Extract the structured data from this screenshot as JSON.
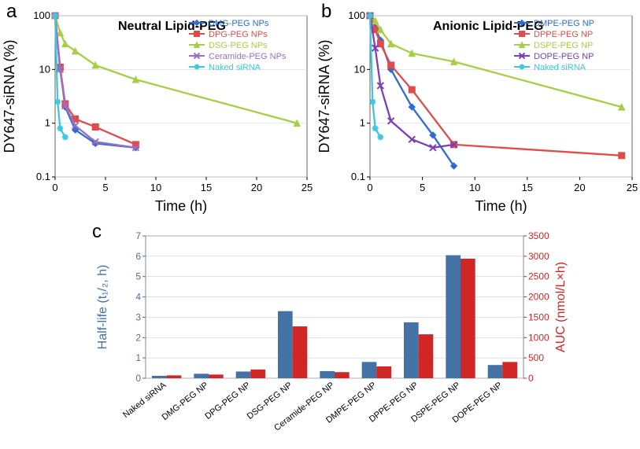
{
  "panel_a": {
    "letter": "a",
    "title": "Neutral Lipid-PEG",
    "xlabel": "Time (h)",
    "ylabel": "DY647-siRNA (%)",
    "xlim": [
      0,
      25
    ],
    "xtick_step": 5,
    "ylim": [
      0.1,
      100
    ],
    "yscale": "log",
    "bg": "#ffffff",
    "grid": "#d9d9d9",
    "series": [
      {
        "name": "DMG-PEG NPs",
        "color": "#2d6cd2",
        "marker": "diamond",
        "x": [
          0,
          0.5,
          1,
          2,
          4,
          8
        ],
        "y": [
          100,
          10,
          2.0,
          0.75,
          0.42,
          0.35
        ]
      },
      {
        "name": "DPG-PEG NPs",
        "color": "#e14b4b",
        "marker": "square",
        "x": [
          0,
          0.5,
          1,
          2,
          4,
          8
        ],
        "y": [
          100,
          11,
          2.3,
          1.2,
          0.85,
          0.4
        ]
      },
      {
        "name": "DSG-PEG NPs",
        "color": "#a6cf45",
        "marker": "triangle",
        "x": [
          0,
          0.5,
          1,
          2,
          4,
          8,
          24
        ],
        "y": [
          100,
          48,
          30,
          22,
          12,
          6.5,
          1.0
        ]
      },
      {
        "name": "Ceramide-PEG NPs",
        "color": "#9b6fbf",
        "marker": "x",
        "x": [
          0,
          0.5,
          1,
          2,
          4,
          8
        ],
        "y": [
          100,
          10,
          2.1,
          0.9,
          0.45,
          0.35
        ]
      },
      {
        "name": "Naked siRNA",
        "color": "#3dc7e0",
        "marker": "star",
        "x": [
          0,
          0.25,
          0.5,
          1
        ],
        "y": [
          100,
          2.5,
          0.8,
          0.55
        ]
      }
    ]
  },
  "panel_b": {
    "letter": "b",
    "title": "Anionic Lipid-PEG",
    "xlabel": "Time (h)",
    "ylabel": "DY647-siRNA (%)",
    "xlim": [
      0,
      25
    ],
    "xtick_step": 5,
    "ylim": [
      0.1,
      100
    ],
    "yscale": "log",
    "bg": "#ffffff",
    "grid": "#d9d9d9",
    "series": [
      {
        "name": "DMPE-PEG NP",
        "color": "#2d6cd2",
        "marker": "diamond",
        "x": [
          0,
          0.5,
          1,
          2,
          4,
          6,
          8
        ],
        "y": [
          100,
          60,
          35,
          10,
          2.0,
          0.6,
          0.16
        ]
      },
      {
        "name": "DPPE-PEG NP",
        "color": "#e14b4b",
        "marker": "square",
        "x": [
          0,
          0.5,
          1,
          2,
          4,
          8,
          24
        ],
        "y": [
          100,
          55,
          30,
          12,
          4.2,
          0.4,
          0.25
        ]
      },
      {
        "name": "DSPE-PEG NP",
        "color": "#a6cf45",
        "marker": "triangle",
        "x": [
          0,
          0.5,
          1,
          2,
          4,
          8,
          24
        ],
        "y": [
          100,
          80,
          55,
          30,
          20,
          14,
          2.0
        ]
      },
      {
        "name": "DOPE-PEG NP",
        "color": "#7b41b3",
        "marker": "x",
        "x": [
          0,
          0.5,
          1,
          2,
          4,
          6,
          8
        ],
        "y": [
          100,
          25,
          5,
          1.1,
          0.5,
          0.35,
          0.4
        ]
      },
      {
        "name": "Naked siRNA",
        "color": "#3dc7e0",
        "marker": "star",
        "x": [
          0,
          0.25,
          0.5,
          1
        ],
        "y": [
          100,
          2.5,
          0.8,
          0.55
        ]
      }
    ]
  },
  "panel_c": {
    "letter": "c",
    "ylabel_left": "Half-life (t₁/₂, h)",
    "ylabel_right": "AUC (nmol/L×h)",
    "left_color": "#4472a4",
    "right_color": "#d02626",
    "ylim_left": [
      0,
      7
    ],
    "ytick_left_step": 1,
    "ylim_right": [
      0,
      3500
    ],
    "ytick_right_step": 500,
    "bar_width": 0.35,
    "bg": "#ffffff",
    "grid": "#d0d0d0",
    "categories": [
      "Naked siRNA",
      "DMG-PEG NP",
      "DPG-PEG NP",
      "DSG-PEG NP",
      "Ceramide-PEG NP",
      "DMPE-PEG NP",
      "DPPE-PEG NP",
      "DSPE-PEG NP",
      "DOPE-PEG NP"
    ],
    "half_life": [
      0.12,
      0.22,
      0.33,
      3.3,
      0.35,
      0.8,
      2.75,
      6.05,
      0.65
    ],
    "auc": [
      70,
      90,
      215,
      1275,
      150,
      290,
      1080,
      2940,
      400
    ]
  }
}
